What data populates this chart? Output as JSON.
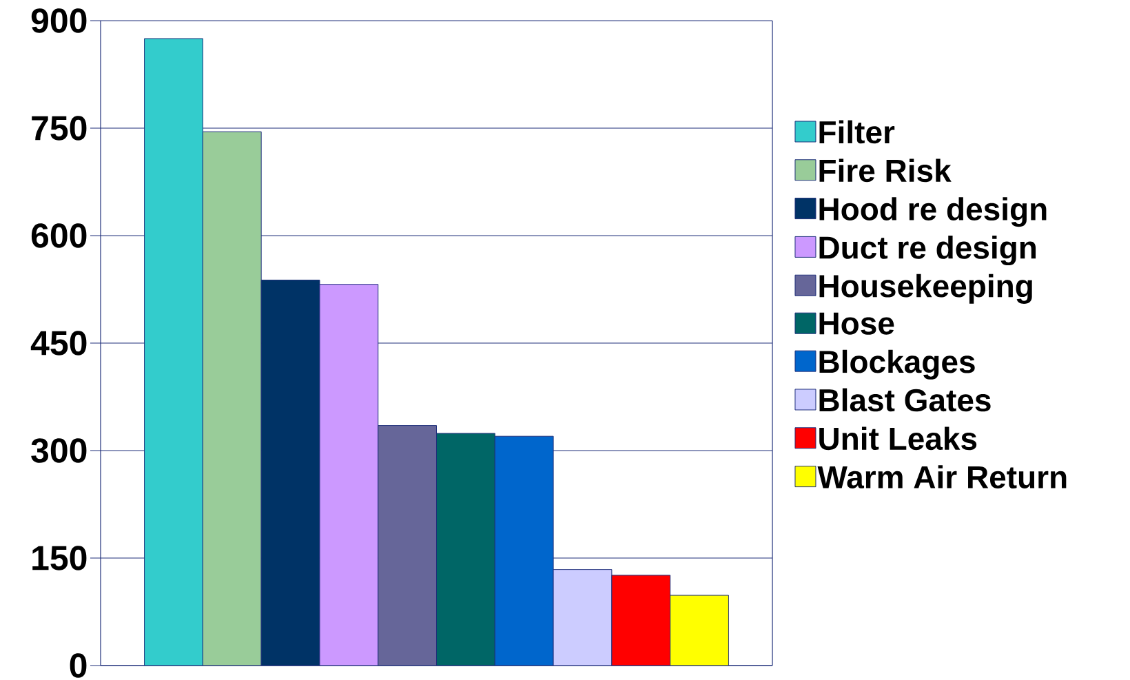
{
  "chart_data": {
    "type": "bar",
    "categories": [
      null
    ],
    "series": [
      {
        "name": "Filter",
        "color": "#33cccc",
        "values": [
          875
        ]
      },
      {
        "name": "Fire Risk",
        "color": "#99cc99",
        "values": [
          745
        ]
      },
      {
        "name": "Hood re design",
        "color": "#003366",
        "values": [
          538
        ]
      },
      {
        "name": "Duct re design",
        "color": "#cc99ff",
        "values": [
          532
        ]
      },
      {
        "name": "Housekeeping",
        "color": "#666699",
        "values": [
          335
        ]
      },
      {
        "name": "Hose",
        "color": "#006666",
        "values": [
          324
        ]
      },
      {
        "name": "Blockages",
        "color": "#0066cc",
        "values": [
          320
        ]
      },
      {
        "name": "Blast Gates",
        "color": "#ccccff",
        "values": [
          134
        ]
      },
      {
        "name": "Unit Leaks",
        "color": "#ff0000",
        "values": [
          126
        ]
      },
      {
        "name": "Warm Air Return",
        "color": "#ffff00",
        "values": [
          98
        ]
      }
    ],
    "ylim": [
      0,
      900
    ],
    "yticks": [
      0,
      150,
      300,
      450,
      600,
      750,
      900
    ],
    "grid": "y",
    "legend": "right"
  }
}
